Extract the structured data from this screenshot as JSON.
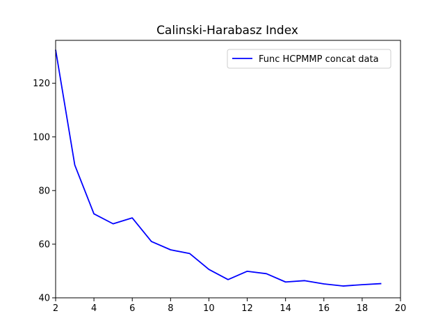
{
  "chart_data": {
    "type": "line",
    "title": "Calinski-Harabasz Index",
    "xlabel": "",
    "ylabel": "",
    "xlim": [
      2,
      20
    ],
    "ylim": [
      40,
      136
    ],
    "xticks": [
      2,
      4,
      6,
      8,
      10,
      12,
      14,
      16,
      18,
      20
    ],
    "yticks": [
      40,
      60,
      80,
      100,
      120
    ],
    "grid": false,
    "legend_position": "top-right",
    "series": [
      {
        "name": "Func HCPMMP concat data",
        "color": "#0000ff",
        "x": [
          2,
          3,
          4,
          5,
          6,
          7,
          8,
          9,
          10,
          11,
          12,
          13,
          14,
          15,
          16,
          17,
          18,
          19
        ],
        "y": [
          132.5,
          89.5,
          71.3,
          67.6,
          69.8,
          61.0,
          57.9,
          56.5,
          50.6,
          46.8,
          49.9,
          49.0,
          45.9,
          46.4,
          45.2,
          44.4,
          44.9,
          45.3
        ]
      }
    ]
  }
}
